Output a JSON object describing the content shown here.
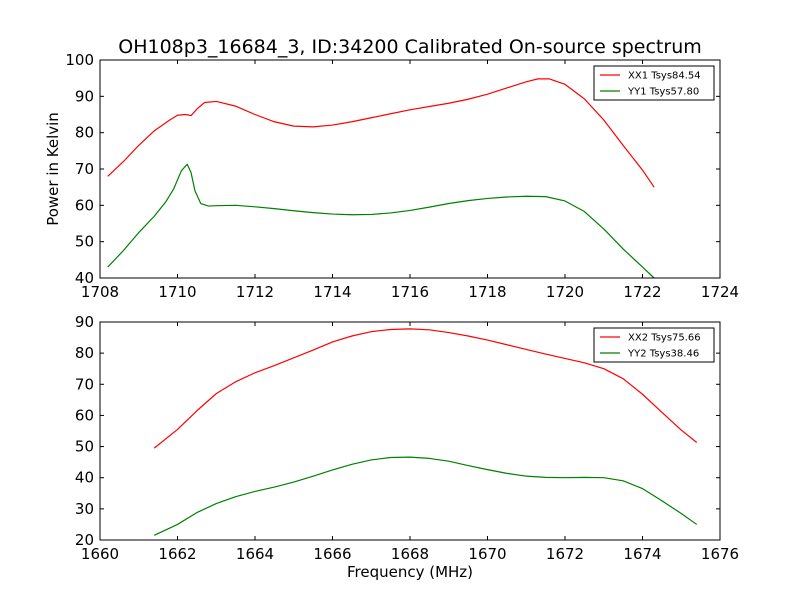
{
  "chart_data": [
    {
      "type": "line",
      "title": "OH108p3_16684_3, ID:34200 Calibrated On-source spectrum",
      "xlabel": "",
      "ylabel": "Power in Kelvin",
      "xlim": [
        1708,
        1724
      ],
      "ylim": [
        40,
        100
      ],
      "xticks": [
        "1708",
        "1710",
        "1712",
        "1714",
        "1716",
        "1718",
        "1720",
        "1722",
        "1724"
      ],
      "yticks": [
        "40",
        "50",
        "60",
        "70",
        "80",
        "90",
        "100"
      ],
      "legend": "top-right",
      "series": [
        {
          "name": "XX1 Tsys84.54",
          "color": "#ff0000",
          "x": [
            1708.2,
            1708.6,
            1709.0,
            1709.4,
            1709.8,
            1710.0,
            1710.2,
            1710.35,
            1710.5,
            1710.7,
            1711.0,
            1711.5,
            1712.0,
            1712.5,
            1713.0,
            1713.5,
            1714.0,
            1714.5,
            1715.0,
            1715.5,
            1716.0,
            1716.5,
            1717.0,
            1717.5,
            1718.0,
            1718.5,
            1719.0,
            1719.3,
            1719.6,
            1720.0,
            1720.5,
            1721.0,
            1721.5,
            1722.0,
            1722.3
          ],
          "y": [
            68,
            72,
            76.5,
            80.5,
            83.5,
            84.8,
            85.0,
            84.7,
            86.5,
            88.3,
            88.6,
            87.3,
            85.0,
            83.0,
            81.8,
            81.6,
            82.1,
            83.0,
            84.1,
            85.2,
            86.3,
            87.2,
            88.1,
            89.2,
            90.6,
            92.3,
            94.0,
            94.8,
            94.8,
            93.3,
            89.3,
            83.5,
            76.5,
            69.7,
            65.0
          ]
        },
        {
          "name": "YY1 Tsys57.80",
          "color": "#008000",
          "x": [
            1708.2,
            1708.6,
            1709.0,
            1709.4,
            1709.7,
            1709.9,
            1710.1,
            1710.25,
            1710.35,
            1710.45,
            1710.6,
            1710.8,
            1711.0,
            1711.5,
            1712.0,
            1712.5,
            1713.0,
            1713.5,
            1714.0,
            1714.5,
            1715.0,
            1715.5,
            1716.0,
            1716.5,
            1717.0,
            1717.5,
            1718.0,
            1718.5,
            1719.0,
            1719.5,
            1720.0,
            1720.5,
            1721.0,
            1721.5,
            1722.0,
            1722.3
          ],
          "y": [
            43,
            47.5,
            52.5,
            57,
            61,
            64.5,
            69.5,
            71.3,
            69,
            64,
            60.5,
            59.8,
            59.9,
            60.0,
            59.6,
            59.1,
            58.5,
            58.0,
            57.6,
            57.4,
            57.5,
            57.9,
            58.6,
            59.5,
            60.5,
            61.3,
            61.9,
            62.3,
            62.5,
            62.4,
            61.2,
            58.3,
            53.5,
            48.0,
            43.0,
            40.0
          ]
        }
      ]
    },
    {
      "type": "line",
      "title": "",
      "xlabel": "Frequency (MHz)",
      "ylabel": "",
      "xlim": [
        1660,
        1676
      ],
      "ylim": [
        20,
        90
      ],
      "xticks": [
        "1660",
        "1662",
        "1664",
        "1666",
        "1668",
        "1670",
        "1672",
        "1674",
        "1676"
      ],
      "yticks": [
        "20",
        "30",
        "40",
        "50",
        "60",
        "70",
        "80",
        "90"
      ],
      "legend": "top-right",
      "series": [
        {
          "name": "XX2 Tsys75.66",
          "color": "#ff0000",
          "x": [
            1661.4,
            1662.0,
            1662.5,
            1663.0,
            1663.5,
            1664.0,
            1664.5,
            1665.0,
            1665.5,
            1666.0,
            1666.5,
            1667.0,
            1667.5,
            1668.0,
            1668.5,
            1669.0,
            1669.5,
            1670.0,
            1670.5,
            1671.0,
            1671.5,
            1672.0,
            1672.5,
            1673.0,
            1673.5,
            1674.0,
            1674.5,
            1675.0,
            1675.4
          ],
          "y": [
            49.5,
            55.5,
            61.5,
            67.0,
            70.8,
            73.7,
            76.0,
            78.5,
            81.0,
            83.6,
            85.5,
            86.9,
            87.6,
            87.8,
            87.5,
            86.6,
            85.5,
            84.2,
            82.7,
            81.2,
            79.7,
            78.3,
            76.9,
            75.0,
            71.8,
            66.8,
            61.0,
            55.3,
            51.3
          ]
        },
        {
          "name": "YY2 Tsys38.46",
          "color": "#008000",
          "x": [
            1661.4,
            1662.0,
            1662.5,
            1663.0,
            1663.5,
            1664.0,
            1664.5,
            1665.0,
            1665.5,
            1666.0,
            1666.5,
            1667.0,
            1667.5,
            1668.0,
            1668.5,
            1669.0,
            1669.5,
            1670.0,
            1670.5,
            1671.0,
            1671.5,
            1672.0,
            1672.5,
            1673.0,
            1673.5,
            1674.0,
            1674.5,
            1675.0,
            1675.4
          ],
          "y": [
            21.5,
            25.0,
            28.8,
            31.7,
            33.9,
            35.6,
            37.0,
            38.6,
            40.5,
            42.5,
            44.3,
            45.7,
            46.5,
            46.6,
            46.2,
            45.3,
            43.9,
            42.6,
            41.4,
            40.5,
            40.1,
            40.0,
            40.1,
            40.0,
            39.0,
            36.5,
            32.6,
            28.5,
            25.0
          ]
        }
      ]
    }
  ]
}
